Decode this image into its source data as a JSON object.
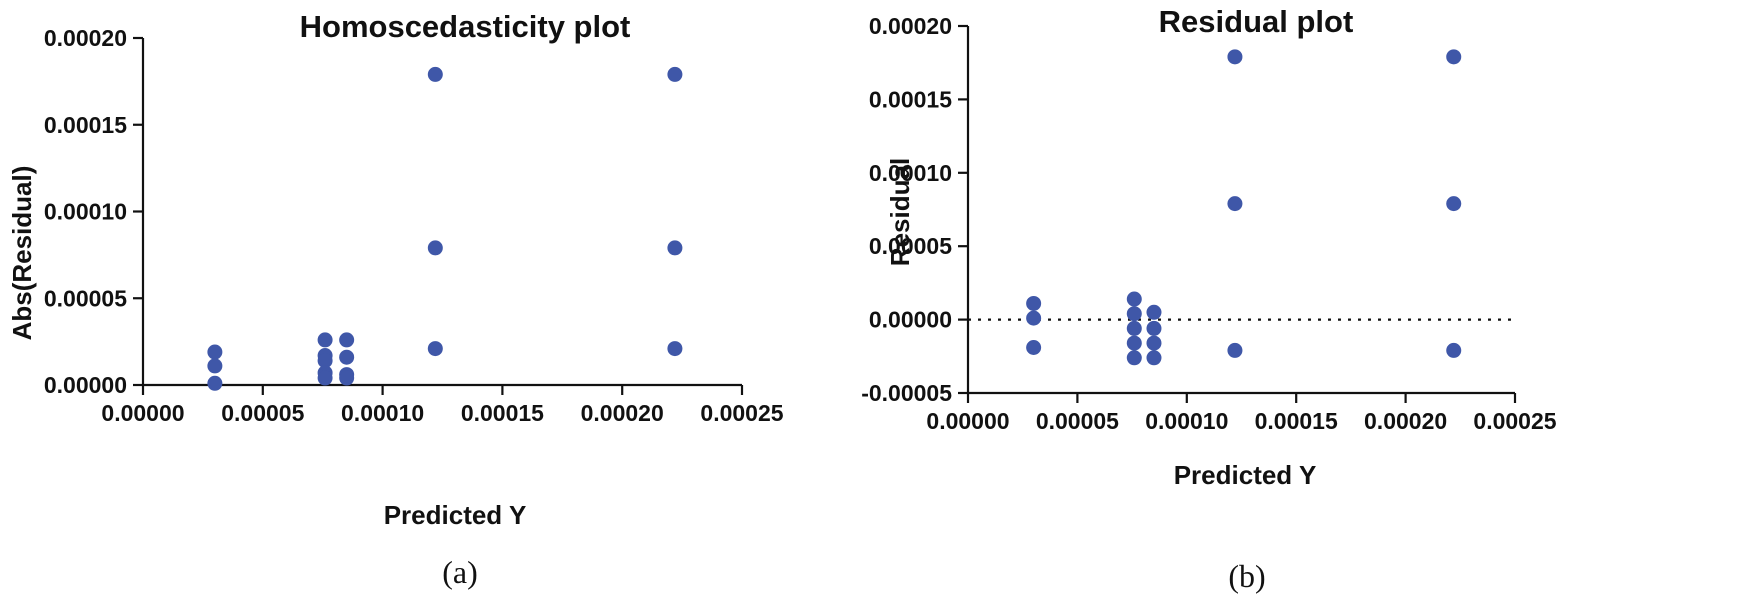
{
  "chart_data": [
    {
      "type": "scatter",
      "title": "Homoscedasticity plot",
      "xlabel": "Predicted Y",
      "ylabel": "Abs(Residual)",
      "caption": "(a)",
      "xlim": [
        0,
        0.00025
      ],
      "ylim": [
        0,
        0.0002
      ],
      "xticks": [
        "0.00000",
        "0.00005",
        "0.00010",
        "0.00015",
        "0.00020",
        "0.00025"
      ],
      "yticks": [
        "0.00000",
        "0.00005",
        "0.00010",
        "0.00015",
        "0.00020"
      ],
      "color": "#3f57a8",
      "points": [
        {
          "x": 3e-05,
          "y": 1.9e-05
        },
        {
          "x": 3e-05,
          "y": 1.1e-05
        },
        {
          "x": 3e-05,
          "y": 1e-06
        },
        {
          "x": 7.6e-05,
          "y": 2.6e-05
        },
        {
          "x": 7.6e-05,
          "y": 1.7e-05
        },
        {
          "x": 7.6e-05,
          "y": 1.4e-05
        },
        {
          "x": 7.6e-05,
          "y": 7e-06
        },
        {
          "x": 7.6e-05,
          "y": 4e-06
        },
        {
          "x": 8.5e-05,
          "y": 2.6e-05
        },
        {
          "x": 8.5e-05,
          "y": 1.6e-05
        },
        {
          "x": 8.5e-05,
          "y": 6e-06
        },
        {
          "x": 8.5e-05,
          "y": 4e-06
        },
        {
          "x": 0.000122,
          "y": 0.000179
        },
        {
          "x": 0.000122,
          "y": 7.9e-05
        },
        {
          "x": 0.000122,
          "y": 2.1e-05
        },
        {
          "x": 0.000222,
          "y": 0.000179
        },
        {
          "x": 0.000222,
          "y": 7.9e-05
        },
        {
          "x": 0.000222,
          "y": 2.1e-05
        }
      ]
    },
    {
      "type": "scatter",
      "title": "Residual plot",
      "xlabel": "Predicted Y",
      "ylabel": "Residual",
      "caption": "(b)",
      "xlim": [
        0,
        0.00025
      ],
      "ylim": [
        -5e-05,
        0.0002
      ],
      "xticks": [
        "0.00000",
        "0.00005",
        "0.00010",
        "0.00015",
        "0.00020",
        "0.00025"
      ],
      "yticks": [
        "-0.00005",
        "0.00000",
        "0.00005",
        "0.00010",
        "0.00015",
        "0.00020"
      ],
      "zero_line": true,
      "color": "#3f57a8",
      "points": [
        {
          "x": 3e-05,
          "y": 1.1e-05
        },
        {
          "x": 3e-05,
          "y": 1e-06
        },
        {
          "x": 3e-05,
          "y": -1.9e-05
        },
        {
          "x": 7.6e-05,
          "y": 1.4e-05
        },
        {
          "x": 7.6e-05,
          "y": 4e-06
        },
        {
          "x": 7.6e-05,
          "y": -6e-06
        },
        {
          "x": 7.6e-05,
          "y": -1.6e-05
        },
        {
          "x": 7.6e-05,
          "y": -2.6e-05
        },
        {
          "x": 8.5e-05,
          "y": 5e-06
        },
        {
          "x": 8.5e-05,
          "y": -6e-06
        },
        {
          "x": 8.5e-05,
          "y": -1.6e-05
        },
        {
          "x": 8.5e-05,
          "y": -2.6e-05
        },
        {
          "x": 0.000122,
          "y": 0.000179
        },
        {
          "x": 0.000122,
          "y": 7.9e-05
        },
        {
          "x": 0.000122,
          "y": -2.1e-05
        },
        {
          "x": 0.000222,
          "y": 0.000179
        },
        {
          "x": 0.000222,
          "y": 7.9e-05
        },
        {
          "x": 0.000222,
          "y": -2.1e-05
        }
      ]
    }
  ]
}
